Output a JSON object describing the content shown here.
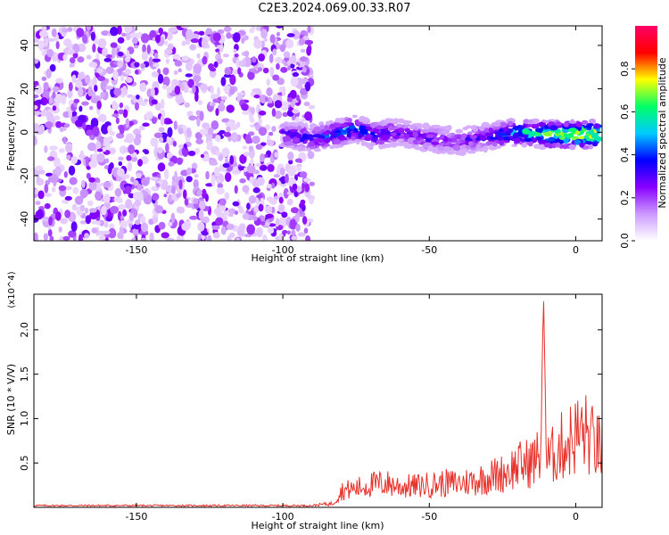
{
  "title": "C2E3.2024.069.00.33.R07",
  "chart_data": [
    {
      "type": "heatmap",
      "xlabel": "Height of straight line (km)",
      "ylabel": "Frequency (Hz)",
      "xlim": [
        -185,
        9
      ],
      "ylim": [
        -50,
        49
      ],
      "xticks": [
        -150,
        -100,
        -50,
        0
      ],
      "yticks": [
        -40,
        -20,
        0,
        20,
        40
      ],
      "colorbar": {
        "label": "Normalized spectral amplitude",
        "range": [
          0,
          1
        ],
        "ticks": [
          "0.0",
          "0.2",
          "0.4",
          "0.6",
          "0.8"
        ],
        "colors": [
          "#ffffff",
          "#cc99ff",
          "#8800ff",
          "#0000ff",
          "#00ccff",
          "#00ff66",
          "#ffff00",
          "#ff0000",
          "#ff0066"
        ]
      },
      "regions": [
        {
          "name": "noise",
          "x_range": [
            -185,
            -90
          ],
          "freq_range": [
            -50,
            49
          ],
          "amplitude_range": [
            0.05,
            0.3
          ]
        },
        {
          "name": "signal",
          "x_range": [
            -100,
            9
          ],
          "center_freq_hz": -1,
          "bandwidth_hz": 12,
          "amplitude_range": [
            0.2,
            1.0
          ]
        }
      ],
      "signal_track": {
        "x": [
          -100,
          -90,
          -80,
          -75,
          -70,
          -60,
          -50,
          -40,
          -30,
          -20,
          -10,
          0,
          8
        ],
        "freq": [
          -1,
          -3,
          0,
          2,
          -1,
          0,
          -3,
          -4,
          -2,
          0,
          -1,
          -1,
          -1
        ],
        "peak_amplitude": [
          0.4,
          0.4,
          0.5,
          0.55,
          0.45,
          0.35,
          0.35,
          0.3,
          0.4,
          0.6,
          0.8,
          0.95,
          0.95
        ]
      }
    },
    {
      "type": "line",
      "xlabel": "Height of straight line (km)",
      "ylabel": "SNR (10 * V/V)",
      "multiplier": "(x10^4)",
      "xlim": [
        -185,
        9
      ],
      "ylim": [
        0,
        2.4
      ],
      "xticks": [
        -150,
        -100,
        -50,
        0
      ],
      "yticks": [
        "0.5",
        "1.0",
        "1.5",
        "2.0"
      ],
      "color": "#e8302a",
      "series": [
        {
          "x": [
            -185,
            -120,
            -90,
            -83,
            -80,
            -75,
            -70,
            -65,
            -60,
            -55,
            -50,
            -45,
            -40,
            -35,
            -30,
            -25,
            -20,
            -15,
            -12,
            -11,
            -10,
            -5,
            0,
            3,
            6,
            9
          ],
          "y": [
            0.02,
            0.02,
            0.02,
            0.05,
            0.22,
            0.25,
            0.3,
            0.32,
            0.28,
            0.28,
            0.3,
            0.32,
            0.32,
            0.35,
            0.4,
            0.45,
            0.55,
            0.6,
            0.7,
            2.4,
            0.6,
            0.8,
            0.95,
            1.0,
            0.85,
            0.75
          ]
        }
      ]
    }
  ]
}
